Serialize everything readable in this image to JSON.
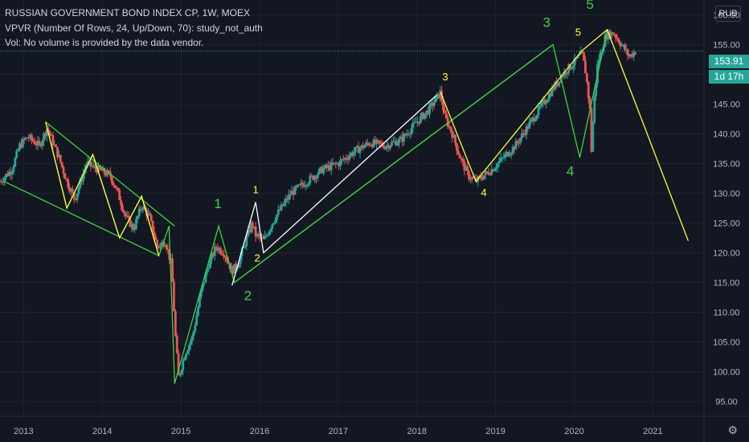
{
  "header": {
    "title": "RUSSIAN GOVERNMENT BOND INDEX CP, 1W, MOEX",
    "indicator": "VPVR (Number Of Rows, 24, Up/Down, 70): study_not_auth",
    "volume_note": "Vol: No volume is provided by the data vendor."
  },
  "currency_button": "RUB",
  "last_price": "153.91",
  "time_to_close": "1d 17h",
  "colors": {
    "background": "#131722",
    "axis_text": "#b2b5be",
    "up": "#26a69a",
    "down": "#ef5350",
    "wave_green": "#3fd33f",
    "wave_yellow": "#ffff33",
    "wave_white": "#ffffff"
  },
  "chart_data": {
    "type": "candlestick",
    "title": "RUSSIAN GOVERNMENT BOND INDEX CP, 1W, MOEX",
    "x_range": [
      2012.7,
      2021.65
    ],
    "ylim": [
      92.5,
      162.5
    ],
    "y_ticks": [
      95,
      100,
      105,
      110,
      115,
      120,
      125,
      130,
      135,
      140,
      145,
      150,
      155,
      160
    ],
    "y_tick_labels": [
      "95.00",
      "100.00",
      "105.00",
      "110.00",
      "115.00",
      "120.00",
      "125.00",
      "130.00",
      "135.00",
      "140.00",
      "145.00",
      "150.00",
      "155.00",
      "160.00"
    ],
    "x_ticks": [
      2013,
      2014,
      2015,
      2016,
      2017,
      2018,
      2019,
      2020,
      2021
    ],
    "x_tick_labels": [
      "2013",
      "2014",
      "2015",
      "2016",
      "2017",
      "2018",
      "2019",
      "2020",
      "2021"
    ],
    "last_price": 153.91,
    "price_path": [
      [
        2012.7,
        132
      ],
      [
        2012.85,
        134
      ],
      [
        2012.95,
        138
      ],
      [
        2013.05,
        139.5
      ],
      [
        2013.2,
        138
      ],
      [
        2013.3,
        141
      ],
      [
        2013.45,
        136
      ],
      [
        2013.55,
        132
      ],
      [
        2013.65,
        129
      ],
      [
        2013.8,
        135
      ],
      [
        2013.95,
        134
      ],
      [
        2014.1,
        133
      ],
      [
        2014.2,
        130
      ],
      [
        2014.3,
        126
      ],
      [
        2014.4,
        124
      ],
      [
        2014.5,
        128
      ],
      [
        2014.6,
        126
      ],
      [
        2014.7,
        121
      ],
      [
        2014.8,
        122
      ],
      [
        2014.88,
        118
      ],
      [
        2014.93,
        106
      ],
      [
        2014.97,
        99
      ],
      [
        2015.05,
        103
      ],
      [
        2015.15,
        106
      ],
      [
        2015.25,
        113
      ],
      [
        2015.35,
        118
      ],
      [
        2015.45,
        121
      ],
      [
        2015.55,
        120
      ],
      [
        2015.65,
        117
      ],
      [
        2015.72,
        118
      ],
      [
        2015.8,
        121
      ],
      [
        2015.9,
        125
      ],
      [
        2015.95,
        123
      ],
      [
        2016.05,
        122
      ],
      [
        2016.2,
        126
      ],
      [
        2016.4,
        130
      ],
      [
        2016.6,
        132
      ],
      [
        2016.8,
        134
      ],
      [
        2017.0,
        135
      ],
      [
        2017.2,
        137
      ],
      [
        2017.4,
        138.5
      ],
      [
        2017.6,
        138
      ],
      [
        2017.8,
        139
      ],
      [
        2018.0,
        142
      ],
      [
        2018.15,
        144
      ],
      [
        2018.3,
        147
      ],
      [
        2018.35,
        143
      ],
      [
        2018.45,
        140
      ],
      [
        2018.55,
        136
      ],
      [
        2018.65,
        133
      ],
      [
        2018.75,
        132
      ],
      [
        2018.85,
        133
      ],
      [
        2018.95,
        134
      ],
      [
        2019.1,
        136
      ],
      [
        2019.25,
        138
      ],
      [
        2019.4,
        141
      ],
      [
        2019.55,
        144
      ],
      [
        2019.7,
        147
      ],
      [
        2019.85,
        150
      ],
      [
        2020.0,
        152
      ],
      [
        2020.1,
        153.5
      ],
      [
        2020.15,
        150
      ],
      [
        2020.2,
        144
      ],
      [
        2020.22,
        137
      ],
      [
        2020.25,
        145
      ],
      [
        2020.3,
        152
      ],
      [
        2020.4,
        156.5
      ],
      [
        2020.5,
        157
      ],
      [
        2020.6,
        155
      ],
      [
        2020.7,
        153
      ],
      [
        2020.78,
        153.91
      ]
    ],
    "series": [
      {
        "name": "",
        "color": "#3fd33f",
        "points": [
          [
            2013.28,
            142
          ],
          [
            2013.55,
            127.5
          ],
          [
            2013.88,
            136.5
          ],
          [
            2014.22,
            122.5
          ],
          [
            2014.5,
            129.5
          ],
          [
            2014.72,
            119.5
          ],
          [
            2014.85,
            124.5
          ],
          [
            2014.92,
            98
          ],
          [
            2015.48,
            124.5
          ],
          [
            2015.68,
            115
          ],
          [
            2019.73,
            155
          ],
          [
            2020.07,
            136
          ],
          [
            2020.42,
            157.5
          ]
        ]
      },
      {
        "name": "",
        "color": "#3fd33f",
        "points": [
          [
            2012.75,
            132
          ],
          [
            2014.72,
            119.5
          ]
        ]
      },
      {
        "name": "",
        "color": "#3fd33f",
        "points": [
          [
            2013.28,
            142
          ],
          [
            2014.92,
            124.5
          ]
        ]
      },
      {
        "name": "",
        "color": "#3fd33f",
        "points": [
          [
            2015.68,
            115
          ],
          [
            2019.73,
            155
          ]
        ]
      },
      {
        "name": "",
        "color": "#ffff33",
        "points": [
          [
            2013.28,
            142
          ],
          [
            2013.55,
            127.5
          ],
          [
            2013.88,
            136.5
          ],
          [
            2014.22,
            122.5
          ],
          [
            2014.5,
            129.5
          ],
          [
            2014.72,
            119.5
          ]
        ]
      },
      {
        "name": "",
        "color": "#ffff33",
        "points": [
          [
            2018.3,
            147
          ],
          [
            2018.75,
            132
          ],
          [
            2020.1,
            154
          ],
          [
            2020.42,
            157.5
          ],
          [
            2021.45,
            122
          ]
        ]
      },
      {
        "name": "",
        "color": "#ffffff",
        "points": [
          [
            2015.65,
            114.5
          ],
          [
            2015.95,
            128.5
          ],
          [
            2016.05,
            120
          ],
          [
            2018.25,
            146.5
          ]
        ]
      }
    ],
    "annotations": [
      {
        "text": "1",
        "x": 2015.47,
        "y": 127.5,
        "color": "#3fd33f",
        "size": "large"
      },
      {
        "text": "2",
        "x": 2015.85,
        "y": 112,
        "color": "#3fd33f",
        "size": "large"
      },
      {
        "text": "3",
        "x": 2019.65,
        "y": 158,
        "color": "#3fd33f",
        "size": "large"
      },
      {
        "text": "4",
        "x": 2019.95,
        "y": 133,
        "color": "#3fd33f",
        "size": "large"
      },
      {
        "text": "5",
        "x": 2020.2,
        "y": 161,
        "color": "#3fd33f",
        "size": "large"
      },
      {
        "text": "1",
        "x": 2015.95,
        "y": 130,
        "color": "#ffff33",
        "size": "small"
      },
      {
        "text": "2",
        "x": 2015.97,
        "y": 118.5,
        "color": "#ffff33",
        "size": "small"
      },
      {
        "text": "3",
        "x": 2018.36,
        "y": 149,
        "color": "#ffff33",
        "size": "small"
      },
      {
        "text": "4",
        "x": 2018.85,
        "y": 129.5,
        "color": "#ffff33",
        "size": "small"
      },
      {
        "text": "5",
        "x": 2020.05,
        "y": 156.5,
        "color": "#ffff33",
        "size": "small"
      }
    ]
  }
}
